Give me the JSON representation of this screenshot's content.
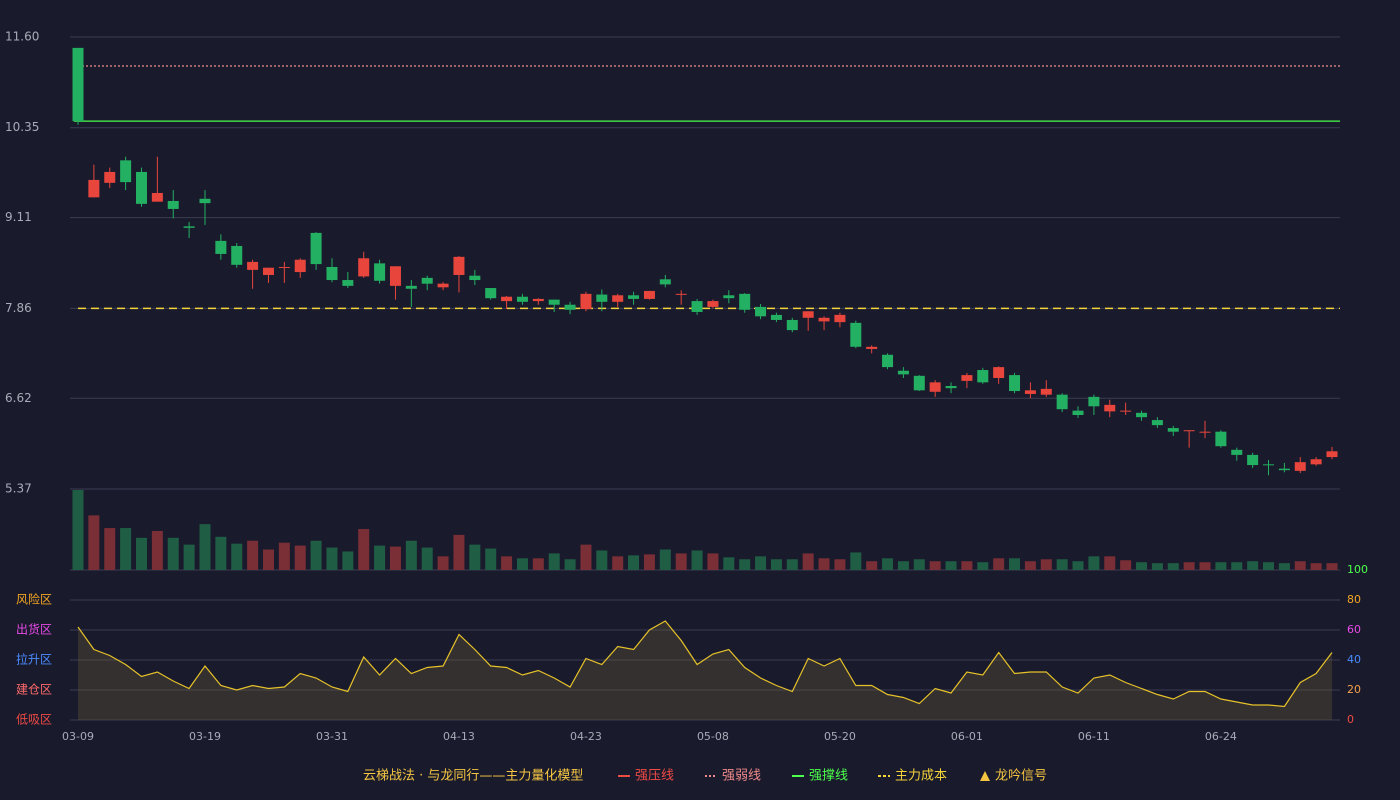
{
  "chart_data": {
    "type": "candlestick",
    "subtitle": "云梯战法 · 与龙同行——主力量化模型",
    "categories": [
      "03-09",
      null,
      null,
      null,
      null,
      null,
      null,
      null,
      "03-19",
      null,
      null,
      null,
      null,
      null,
      null,
      null,
      "03-31",
      null,
      null,
      null,
      null,
      null,
      null,
      null,
      "04-13",
      null,
      null,
      null,
      null,
      null,
      null,
      null,
      "04-23",
      null,
      null,
      null,
      null,
      null,
      null,
      null,
      "05-08",
      null,
      null,
      null,
      null,
      null,
      null,
      null,
      "05-20",
      null,
      null,
      null,
      null,
      null,
      null,
      null,
      "06-01",
      null,
      null,
      null,
      null,
      null,
      null,
      null,
      "06-11",
      null,
      null,
      null,
      null,
      null,
      null,
      null,
      "06-24",
      null,
      null,
      null,
      null,
      null,
      null,
      null
    ],
    "open": [
      11.45,
      9.39,
      9.59,
      9.9,
      9.74,
      9.33,
      9.34,
      8.99,
      9.37,
      8.79,
      8.72,
      8.39,
      8.32,
      8.42,
      8.36,
      8.9,
      8.43,
      8.25,
      8.3,
      8.48,
      8.17,
      8.17,
      8.28,
      8.15,
      8.32,
      8.31,
      8.14,
      7.96,
      8.02,
      7.96,
      7.98,
      7.91,
      7.85,
      8.05,
      7.95,
      8.04,
      7.99,
      8.26,
      8.05,
      7.96,
      7.88,
      8.04,
      8.06,
      7.88,
      7.77,
      7.7,
      7.73,
      7.68,
      7.67,
      7.66,
      7.3,
      7.22,
      7.0,
      6.93,
      6.71,
      6.79,
      6.86,
      7.01,
      6.9,
      6.94,
      6.68,
      6.67,
      6.67,
      6.45,
      6.64,
      6.44,
      6.44,
      6.42,
      6.32,
      6.21,
      6.17,
      6.15,
      6.16,
      5.91,
      5.84,
      5.71,
      5.65,
      5.62,
      5.71,
      5.81
    ],
    "close": [
      10.44,
      9.63,
      9.74,
      9.6,
      9.3,
      9.45,
      9.23,
      8.97,
      9.31,
      8.61,
      8.46,
      8.5,
      8.42,
      8.43,
      8.53,
      8.47,
      8.25,
      8.17,
      8.55,
      8.24,
      8.44,
      8.13,
      8.2,
      8.2,
      8.57,
      8.25,
      8.0,
      8.02,
      7.95,
      7.99,
      7.91,
      7.84,
      8.06,
      7.95,
      8.04,
      7.99,
      8.1,
      8.19,
      8.06,
      7.81,
      7.96,
      8.0,
      7.84,
      7.75,
      7.7,
      7.56,
      7.82,
      7.73,
      7.77,
      7.33,
      7.33,
      7.05,
      6.95,
      6.73,
      6.84,
      6.76,
      6.94,
      6.84,
      7.05,
      6.72,
      6.73,
      6.75,
      6.47,
      6.39,
      6.51,
      6.53,
      6.45,
      6.36,
      6.25,
      6.16,
      6.18,
      6.16,
      5.96,
      5.84,
      5.7,
      5.7,
      5.63,
      5.74,
      5.78,
      5.89
    ],
    "low": [
      10.39,
      9.39,
      9.52,
      9.49,
      9.26,
      9.33,
      9.1,
      8.83,
      9.01,
      8.53,
      8.42,
      8.13,
      8.21,
      8.21,
      8.28,
      8.39,
      8.22,
      8.14,
      8.28,
      8.2,
      7.98,
      7.88,
      8.11,
      8.11,
      8.08,
      8.18,
      7.98,
      7.85,
      7.91,
      7.91,
      7.81,
      7.78,
      7.82,
      7.82,
      7.88,
      7.91,
      7.98,
      8.15,
      7.91,
      7.77,
      7.86,
      7.93,
      7.8,
      7.71,
      7.67,
      7.53,
      7.55,
      7.56,
      7.6,
      7.31,
      7.24,
      7.02,
      6.9,
      6.72,
      6.64,
      6.69,
      6.76,
      6.82,
      6.82,
      6.69,
      6.62,
      6.64,
      6.43,
      6.35,
      6.39,
      6.36,
      6.39,
      6.31,
      6.21,
      6.1,
      5.94,
      6.07,
      5.94,
      5.76,
      5.66,
      5.56,
      5.6,
      5.59,
      5.69,
      5.78
    ],
    "high": [
      11.45,
      9.84,
      9.8,
      9.95,
      9.8,
      9.95,
      9.49,
      9.05,
      9.49,
      8.88,
      8.76,
      8.53,
      8.42,
      8.5,
      8.55,
      8.91,
      8.55,
      8.36,
      8.64,
      8.53,
      8.44,
      8.25,
      8.31,
      8.22,
      8.58,
      8.39,
      8.14,
      8.03,
      8.06,
      8.0,
      7.98,
      7.95,
      8.09,
      8.12,
      8.06,
      8.09,
      8.1,
      8.32,
      8.11,
      7.99,
      7.98,
      8.11,
      8.07,
      7.92,
      7.8,
      7.73,
      7.82,
      7.75,
      7.8,
      7.69,
      7.35,
      7.24,
      7.05,
      6.94,
      6.87,
      6.84,
      6.97,
      7.04,
      7.06,
      6.97,
      6.84,
      6.87,
      6.69,
      6.51,
      6.67,
      6.6,
      6.56,
      6.45,
      6.36,
      6.24,
      6.18,
      6.31,
      6.18,
      5.94,
      5.87,
      5.77,
      5.73,
      5.81,
      5.81,
      5.95
    ],
    "up_color": "#e8463c",
    "down_color": "#23b062",
    "ylim": [
      5.37,
      11.6
    ],
    "yticks": [
      {
        "value": 11.6,
        "label": "11.60"
      },
      10.35,
      9.11,
      7.86,
      6.62,
      5.37
    ],
    "grid": true,
    "volume": [
      82,
      56,
      43,
      43,
      33,
      40,
      33,
      26,
      47,
      34,
      27,
      30,
      21,
      28,
      25,
      30,
      23,
      19,
      42,
      25,
      24,
      30,
      23,
      14,
      36,
      26,
      22,
      14,
      12,
      12,
      17,
      11,
      26,
      20,
      14,
      15,
      16,
      21,
      17,
      20,
      17,
      13,
      11,
      14,
      11,
      11,
      17,
      12,
      11,
      18,
      9,
      12,
      9,
      11,
      9,
      9,
      9,
      8,
      12,
      12,
      9,
      11,
      11,
      9,
      14,
      14,
      10,
      8,
      7,
      7,
      8,
      8,
      8,
      8,
      9,
      8,
      7,
      9,
      7,
      7
    ],
    "reference_lines": [
      {
        "name": "强压线",
        "color": "#ef4b45",
        "dash": "solid"
      },
      {
        "name": "强弱线",
        "color": "#f08a8a",
        "dash": "dotted",
        "value": 11.2
      },
      {
        "name": "强撑线",
        "color": "#4cff4c",
        "dash": "solid",
        "value": 10.44
      },
      {
        "name": "主力成本",
        "color": "#f5d33a",
        "dash": "dashed",
        "value": 7.86
      },
      {
        "name": "龙吟信号",
        "color": "#f5c542",
        "dash": "triangle"
      }
    ],
    "oscillator": {
      "color": "#e6c229",
      "values": [
        62,
        47,
        43,
        37,
        29,
        32,
        26,
        21,
        36,
        23,
        20,
        23,
        21,
        22,
        31,
        28,
        22,
        19,
        42,
        30,
        41,
        31,
        35,
        36,
        57,
        47,
        36,
        35,
        30,
        33,
        28,
        22,
        41,
        37,
        49,
        47,
        60,
        66,
        53,
        37,
        44,
        47,
        35,
        28,
        23,
        19,
        41,
        36,
        41,
        23,
        23,
        17,
        15,
        11,
        21,
        18,
        32,
        30,
        45,
        31,
        32,
        32,
        22,
        18,
        28,
        30,
        25,
        21,
        17,
        14,
        19,
        19,
        14,
        12,
        10,
        10,
        9,
        25,
        31,
        45
      ],
      "ylim": [
        0,
        100
      ],
      "yticks": [
        0,
        20,
        40,
        60,
        80,
        100
      ],
      "ytick_colors": [
        "#ef4b45",
        "#f5a04a",
        "#4a8cff",
        "#e84ae8",
        "#f5a623",
        "#4cff4c"
      ],
      "zones": [
        {
          "value": 80,
          "label": "风险区",
          "color": "#f5a623"
        },
        {
          "value": 60,
          "label": "出货区",
          "color": "#e84ae8"
        },
        {
          "value": 40,
          "label": "拉升区",
          "color": "#4a8cff"
        },
        {
          "value": 20,
          "label": "建仓区",
          "color": "#ff6b6b"
        },
        {
          "value": 0,
          "label": "低吸区",
          "color": "#ef4b45"
        }
      ]
    }
  }
}
